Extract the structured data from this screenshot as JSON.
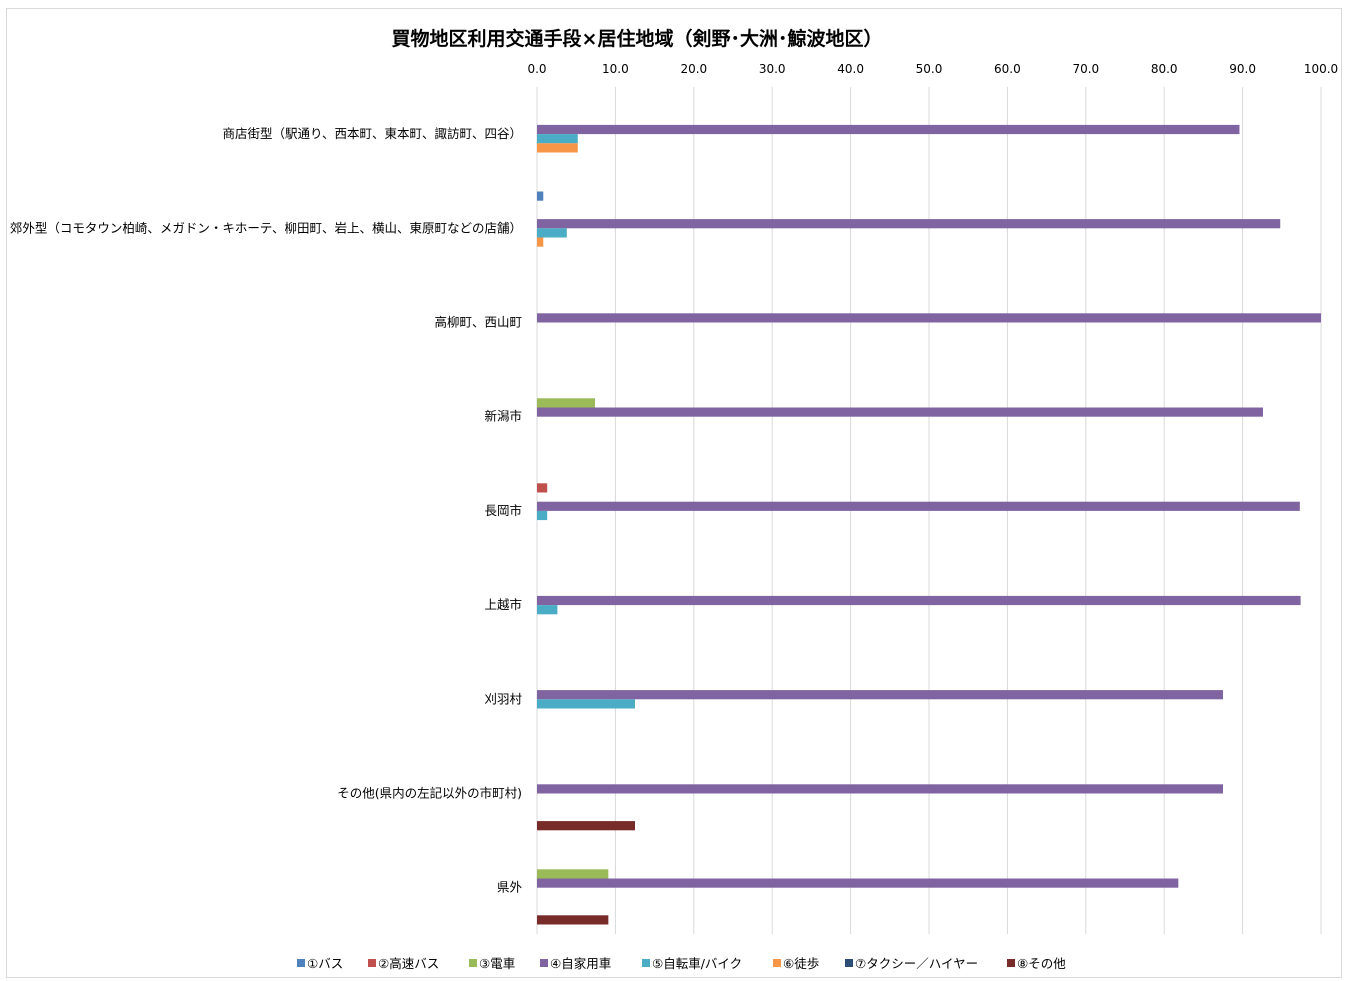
{
  "chart_data": {
    "type": "bar",
    "orientation": "horizontal",
    "title": "買物地区利用交通手段×居住地域（剣野･大洲･鯨波地区）",
    "xlabel": "",
    "ylabel": "",
    "xlim": [
      0,
      100
    ],
    "x_ticks": [
      "0.0",
      "10.0",
      "20.0",
      "30.0",
      "40.0",
      "50.0",
      "60.0",
      "70.0",
      "80.0",
      "90.0",
      "100.0"
    ],
    "x_axis_position": "top",
    "grid": true,
    "legend_position": "bottom",
    "categories": [
      "商店街型（駅通り、西本町、東本町、諏訪町、四谷）",
      "郊外型（コモタウン柏崎、メガドン・キホーテ、柳田町、岩上、横山、東原町などの店舗）",
      "高柳町、西山町",
      "新潟市",
      "長岡市",
      "上越市",
      "刈羽村",
      "その他(県内の左記以外の市町村)",
      "県外"
    ],
    "series": [
      {
        "name": "①バス",
        "color": "#4f81bd",
        "values": [
          0,
          0.8,
          0,
          0,
          0,
          0,
          0,
          0,
          0
        ]
      },
      {
        "name": "②高速バス",
        "color": "#c0504d",
        "values": [
          0,
          0,
          0,
          0,
          1.3,
          0,
          0,
          0,
          0
        ]
      },
      {
        "name": "③電車",
        "color": "#9bbb59",
        "values": [
          0,
          0,
          0,
          7.4,
          0,
          0,
          0,
          0,
          9.1
        ]
      },
      {
        "name": "④自家用車",
        "color": "#8064a2",
        "values": [
          89.6,
          94.8,
          100.0,
          92.6,
          97.3,
          97.4,
          87.5,
          87.5,
          81.8
        ]
      },
      {
        "name": "⑤自転車/バイク",
        "color": "#4bacc6",
        "values": [
          5.2,
          3.8,
          0,
          0,
          1.3,
          2.6,
          12.5,
          0,
          0
        ]
      },
      {
        "name": "⑥徒歩",
        "color": "#f79646",
        "values": [
          5.2,
          0.8,
          0,
          0,
          0,
          0,
          0,
          0,
          0
        ]
      },
      {
        "name": "⑦タクシー／ハイヤー",
        "color": "#2c4d75",
        "values": [
          0,
          0,
          0,
          0,
          0,
          0,
          0,
          0,
          0
        ]
      },
      {
        "name": "⑧その他",
        "color": "#772c2a",
        "values": [
          0,
          0,
          0,
          0,
          0,
          0,
          0,
          12.5,
          9.1
        ]
      }
    ]
  }
}
